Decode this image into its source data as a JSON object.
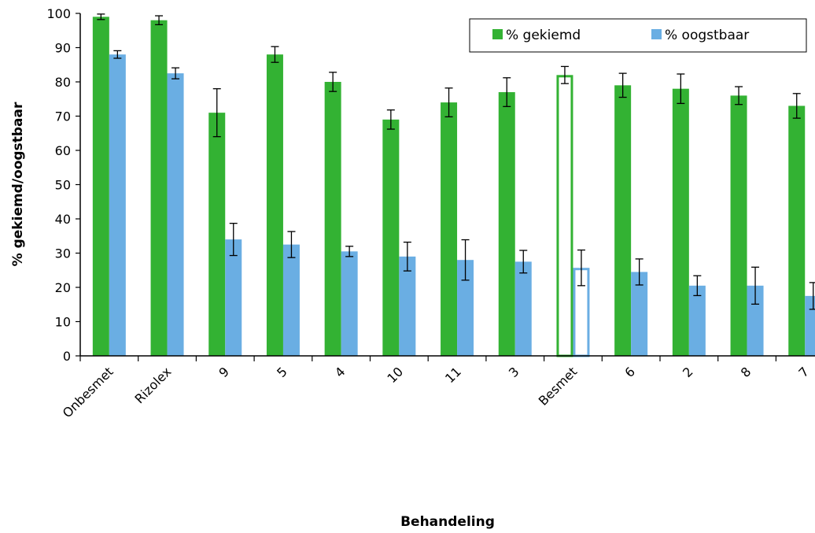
{
  "chart_data": {
    "type": "bar",
    "title": "",
    "xlabel": "Behandeling",
    "ylabel": "% gekiemd/oogstbaar",
    "ylim": [
      0,
      100
    ],
    "yticks": [
      "0",
      "10",
      "20",
      "30",
      "40",
      "50",
      "60",
      "70",
      "80",
      "90",
      "100"
    ],
    "categories": [
      "Onbesmet",
      "Rizolex",
      "9",
      "5",
      "4",
      "10",
      "11",
      "3",
      "Besmet",
      "6",
      "2",
      "8",
      "7"
    ],
    "highlight_category": "Besmet",
    "legend_position": "top-right",
    "series": [
      {
        "name": "% gekiemd",
        "color": "#33b233",
        "values": [
          99,
          98,
          71,
          88,
          80,
          69,
          74,
          77,
          82,
          79,
          78,
          76,
          73
        ],
        "errors": [
          0.8,
          1.3,
          7,
          2.3,
          2.8,
          2.8,
          4.2,
          4.2,
          2.5,
          3.5,
          4.3,
          2.6,
          3.6
        ]
      },
      {
        "name": "% oogstbaar",
        "color": "#6aaee3",
        "values": [
          88,
          82.5,
          34,
          32.5,
          30.5,
          29,
          28,
          27.5,
          25.7,
          24.5,
          20.5,
          20.5,
          17.5
        ],
        "errors": [
          1.1,
          1.6,
          4.7,
          3.8,
          1.5,
          4.2,
          5.9,
          3.3,
          5.2,
          3.8,
          2.9,
          5.4,
          3.9
        ]
      }
    ]
  }
}
